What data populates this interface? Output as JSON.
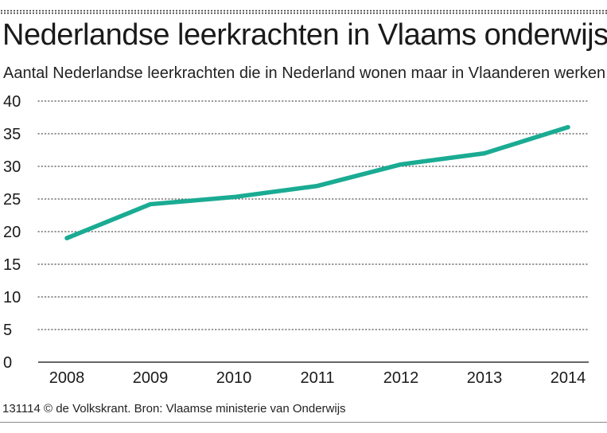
{
  "title": "Nederlandse leerkrachten in Vlaams onderwijs",
  "subtitle": "Aantal Nederlandse leerkrachten die in Nederland wonen maar in Vlaanderen werken.",
  "footer": "131114 © de Volkskrant. Bron: Vlaamse ministerie van Onderwijs",
  "colors": {
    "line": "#1aab93",
    "grid": "#555555",
    "axis": "#333333"
  },
  "chart_data": {
    "type": "line",
    "title": "Nederlandse leerkrachten in Vlaams onderwijs",
    "xlabel": "",
    "ylabel": "",
    "categories": [
      "2008",
      "2009",
      "2010",
      "2011",
      "2012",
      "2013",
      "2014"
    ],
    "series": [
      {
        "name": "Nederlandse leerkrachten",
        "values": [
          19,
          24.2,
          25.3,
          27,
          30.3,
          32,
          36
        ]
      }
    ],
    "ylim": [
      0,
      40
    ],
    "yticks": [
      "0",
      "5",
      "10",
      "15",
      "20",
      "25",
      "30",
      "35",
      "40"
    ],
    "grid": true
  }
}
